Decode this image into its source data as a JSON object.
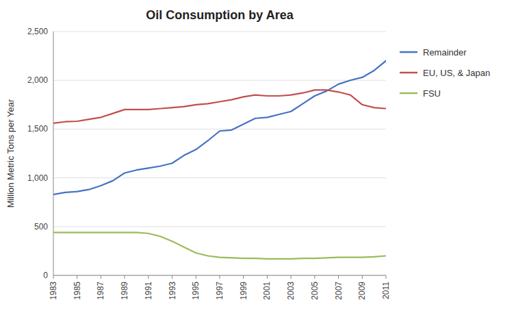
{
  "chart_data": {
    "type": "line",
    "title": "Oil Consumption by Area",
    "ylabel": "Million Metric Tons per Year",
    "x": [
      1983,
      1984,
      1985,
      1986,
      1987,
      1988,
      1989,
      1990,
      1991,
      1992,
      1993,
      1994,
      1995,
      1996,
      1997,
      1998,
      1999,
      2000,
      2001,
      2002,
      2003,
      2004,
      2005,
      2006,
      2007,
      2008,
      2009,
      2010,
      2011
    ],
    "series": [
      {
        "name": "Remainder",
        "color": "#4472C4",
        "values": [
          830,
          850,
          860,
          880,
          920,
          970,
          1050,
          1080,
          1100,
          1120,
          1150,
          1230,
          1290,
          1380,
          1480,
          1490,
          1550,
          1610,
          1620,
          1650,
          1680,
          1760,
          1840,
          1890,
          1960,
          2000,
          2030,
          2100,
          2200
        ]
      },
      {
        "name": "EU, US, & Japan",
        "color": "#C0504D",
        "values": [
          1560,
          1575,
          1580,
          1600,
          1620,
          1660,
          1700,
          1700,
          1700,
          1710,
          1720,
          1730,
          1750,
          1760,
          1780,
          1800,
          1830,
          1850,
          1840,
          1840,
          1850,
          1870,
          1900,
          1900,
          1880,
          1850,
          1750,
          1720,
          1710
        ]
      },
      {
        "name": "FSU",
        "color": "#9BBB59",
        "values": [
          440,
          440,
          440,
          440,
          440,
          440,
          440,
          440,
          430,
          400,
          350,
          290,
          230,
          200,
          185,
          180,
          175,
          175,
          170,
          170,
          170,
          175,
          175,
          180,
          185,
          185,
          185,
          190,
          200
        ]
      }
    ],
    "xlim": [
      1983,
      2011
    ],
    "xticks": [
      1983,
      1985,
      1987,
      1989,
      1991,
      1993,
      1995,
      1997,
      1999,
      2001,
      2003,
      2005,
      2007,
      2009,
      2011
    ],
    "ylim": [
      0,
      2500
    ],
    "yticks": [
      0,
      500,
      {
        "value": 1000,
        "label": "1,000"
      },
      {
        "value": 1500,
        "label": "1,500"
      },
      {
        "value": 2000,
        "label": "2,000"
      },
      {
        "value": 2500,
        "label": "2,500"
      }
    ],
    "grid": true,
    "legend": "right"
  }
}
